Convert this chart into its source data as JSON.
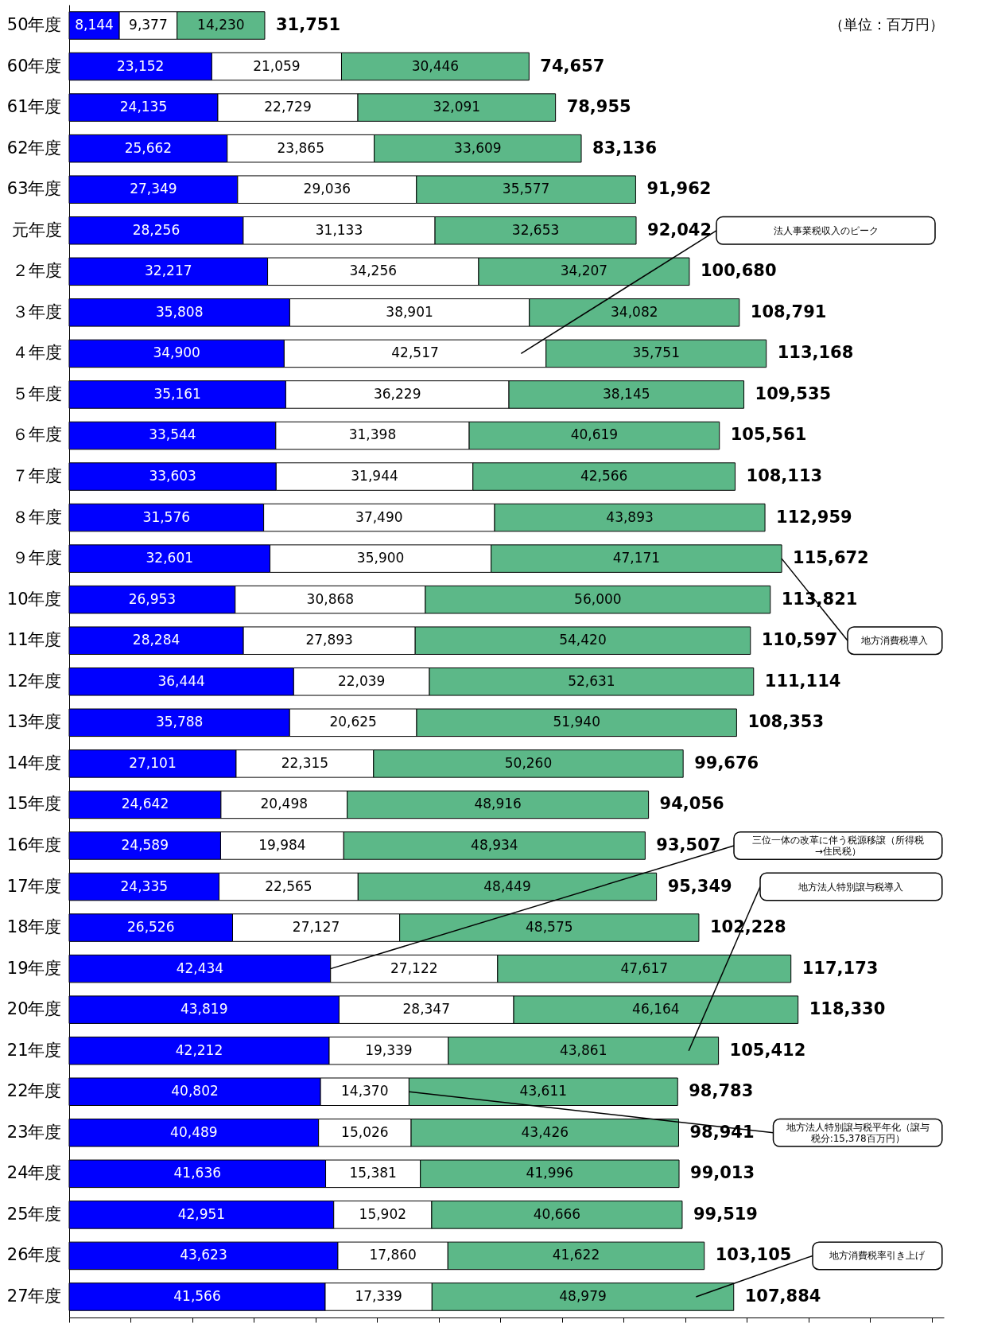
{
  "chart_data": {
    "type": "bar",
    "orientation": "horizontal",
    "stacked": true,
    "categories": [
      "50年度",
      "60年度",
      "61年度",
      "62年度",
      "63年度",
      "元年度",
      "２年度",
      "３年度",
      "４年度",
      "５年度",
      "６年度",
      "７年度",
      "８年度",
      "９年度",
      "10年度",
      "11年度",
      "12年度",
      "13年度",
      "14年度",
      "15年度",
      "16年度",
      "17年度",
      "18年度",
      "19年度",
      "20年度",
      "21年度",
      "22年度",
      "23年度",
      "24年度",
      "25年度",
      "26年度",
      "27年度"
    ],
    "series": [
      {
        "color": "#0000ff",
        "values": [
          8144,
          23152,
          24135,
          25662,
          27349,
          28256,
          32217,
          35808,
          34900,
          35161,
          33544,
          33603,
          31576,
          32601,
          26953,
          28284,
          36444,
          35788,
          27101,
          24642,
          24589,
          24335,
          26526,
          42434,
          43819,
          42212,
          40802,
          40489,
          41636,
          42951,
          43623,
          41566
        ],
        "value_labels": [
          "8,144",
          "23,152",
          "24,135",
          "25,662",
          "27,349",
          "28,256",
          "32,217",
          "35,808",
          "34,900",
          "35,161",
          "33,544",
          "33,603",
          "31,576",
          "32,601",
          "26,953",
          "28,284",
          "36,444",
          "35,788",
          "27,101",
          "24,642",
          "24,589",
          "24,335",
          "26,526",
          "42,434",
          "43,819",
          "42,212",
          "40,802",
          "40,489",
          "41,636",
          "42,951",
          "43,623",
          "41,566"
        ]
      },
      {
        "color": "#ffffff",
        "values": [
          9377,
          21059,
          22729,
          23865,
          29036,
          31133,
          34256,
          38901,
          42517,
          36229,
          31398,
          31944,
          37490,
          35900,
          30868,
          27893,
          22039,
          20625,
          22315,
          20498,
          19984,
          22565,
          27127,
          27122,
          28347,
          19339,
          14370,
          15026,
          15381,
          15902,
          17860,
          17339
        ],
        "value_labels": [
          "9,377",
          "21,059",
          "22,729",
          "23,865",
          "29,036",
          "31,133",
          "34,256",
          "38,901",
          "42,517",
          "36,229",
          "31,398",
          "31,944",
          "37,490",
          "35,900",
          "30,868",
          "27,893",
          "22,039",
          "20,625",
          "22,315",
          "20,498",
          "19,984",
          "22,565",
          "27,127",
          "27,122",
          "28,347",
          "19,339",
          "14,370",
          "15,026",
          "15,381",
          "15,902",
          "17,860",
          "17,339"
        ]
      },
      {
        "color": "#5cb888",
        "values": [
          14230,
          30446,
          32091,
          33609,
          35577,
          32653,
          34207,
          34082,
          35751,
          38145,
          40619,
          42566,
          43893,
          47171,
          56000,
          54420,
          52631,
          51940,
          50260,
          48916,
          48934,
          48449,
          48575,
          47617,
          46164,
          43861,
          43611,
          43426,
          41996,
          40666,
          41622,
          48979
        ],
        "value_labels": [
          "14,230",
          "30,446",
          "32,091",
          "33,609",
          "35,577",
          "32,653",
          "34,207",
          "34,082",
          "35,751",
          "38,145",
          "40,619",
          "42,566",
          "43,893",
          "47,171",
          "56,000",
          "54,420",
          "52,631",
          "51,940",
          "50,260",
          "48,916",
          "48,934",
          "48,449",
          "48,575",
          "47,617",
          "46,164",
          "43,861",
          "43,611",
          "43,426",
          "41,996",
          "40,666",
          "41,622",
          "48,979"
        ]
      }
    ],
    "totals": [
      "31,751",
      "74,657",
      "78,955",
      "83,136",
      "91,962",
      "92,042",
      "100,680",
      "108,791",
      "113,168",
      "109,535",
      "105,561",
      "108,113",
      "112,959",
      "115,672",
      "113,821",
      "110,597",
      "111,114",
      "108,353",
      "99,676",
      "94,056",
      "93,507",
      "95,349",
      "102,228",
      "117,173",
      "118,330",
      "105,412",
      "98,783",
      "98,941",
      "99,013",
      "99,519",
      "103,105",
      "107,884"
    ],
    "tick_labels": "y",
    "annotations": [
      "（単位：百万円）",
      "法人事業税収入のピーク",
      "地方消費税導入",
      "三位一体の改革に伴う税源移譲（所得税→住民税）",
      "地方法人特別譲与税平年化（譲与税分:15,378百万円）",
      "地方法人特別譲与税導入",
      "地方消費税率引き上げ"
    ]
  }
}
